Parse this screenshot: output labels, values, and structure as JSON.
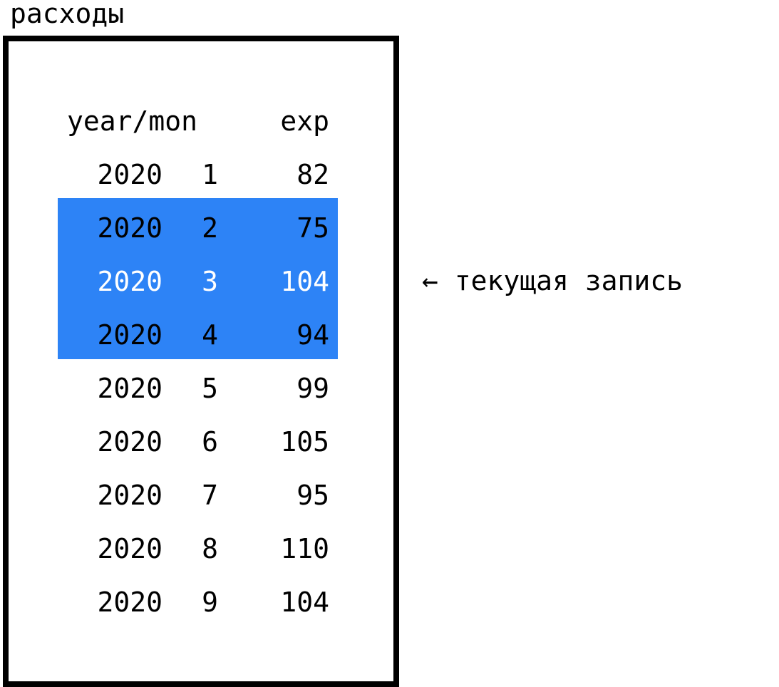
{
  "title": "расходы",
  "colors": {
    "highlight": "#2d83f6",
    "current_row_text": "#ffffff",
    "text": "#000000"
  },
  "table": {
    "header": {
      "yearmon": "year/mon",
      "exp": "exp"
    },
    "rows": [
      {
        "year": "2020",
        "mon": "1",
        "exp": "82",
        "highlighted": false,
        "current": false
      },
      {
        "year": "2020",
        "mon": "2",
        "exp": "75",
        "highlighted": true,
        "current": false
      },
      {
        "year": "2020",
        "mon": "3",
        "exp": "104",
        "highlighted": true,
        "current": true
      },
      {
        "year": "2020",
        "mon": "4",
        "exp": "94",
        "highlighted": true,
        "current": false
      },
      {
        "year": "2020",
        "mon": "5",
        "exp": "99",
        "highlighted": false,
        "current": false
      },
      {
        "year": "2020",
        "mon": "6",
        "exp": "105",
        "highlighted": false,
        "current": false
      },
      {
        "year": "2020",
        "mon": "7",
        "exp": "95",
        "highlighted": false,
        "current": false
      },
      {
        "year": "2020",
        "mon": "8",
        "exp": "110",
        "highlighted": false,
        "current": false
      },
      {
        "year": "2020",
        "mon": "9",
        "exp": "104",
        "highlighted": false,
        "current": false
      }
    ]
  },
  "annotation": {
    "text": "← текущая запись"
  }
}
